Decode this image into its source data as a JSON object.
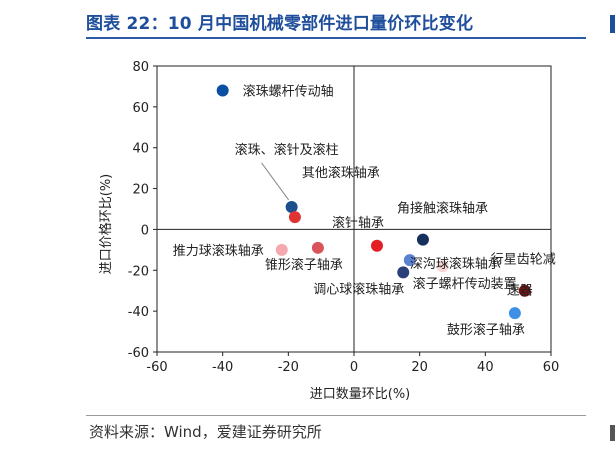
{
  "title": "图表 22：10 月中国机械零部件进口量价环比变化",
  "source": "资料来源：Wind，爱建证券研究所",
  "chart_data": {
    "type": "scatter",
    "xlabel": "进口数量环比(%)",
    "ylabel": "进口价格环比(%)",
    "xlim": [
      -60,
      60
    ],
    "ylim": [
      -60,
      80
    ],
    "xticks": [
      "-60",
      "-40",
      "-20",
      "0",
      "20",
      "40",
      "60"
    ],
    "yticks": [
      "80",
      "60",
      "40",
      "20",
      "0",
      "-20",
      "-40",
      "-60"
    ],
    "grid": false,
    "points": [
      {
        "label": "滚珠螺杆传动轴",
        "x": -40,
        "y": 68,
        "color": "#0b4ea2"
      },
      {
        "label": "滚珠、滚针及滚柱",
        "x": -19,
        "y": 11,
        "color": "#1c4f8c"
      },
      {
        "label": "其他滚珠轴承",
        "x": -18,
        "y": 6,
        "color": "#e03434"
      },
      {
        "label": "推力球滚珠轴承",
        "x": -22,
        "y": -10,
        "color": "#f4a9ae"
      },
      {
        "label": "锥形滚子轴承",
        "x": -11,
        "y": -9,
        "color": "#d9535a"
      },
      {
        "label": "滚针轴承",
        "x": 7,
        "y": -8,
        "color": "#e31e24"
      },
      {
        "label": "角接触滚珠轴承",
        "x": 21,
        "y": -5,
        "color": "#16305e"
      },
      {
        "label": "调心球滚珠轴承",
        "x": 15,
        "y": -21,
        "color": "#2a3f7a"
      },
      {
        "label": "深沟球滚珠轴承",
        "x": 17,
        "y": -15,
        "color": "#5b82cf"
      },
      {
        "label": "滚子螺杆传动装置",
        "x": 27,
        "y": -18,
        "color": "#f7d6d6"
      },
      {
        "label": "行星齿轮减速器",
        "x": 52,
        "y": -30,
        "color": "#7a1111"
      },
      {
        "label": "鼓形滚子轴承",
        "x": 49,
        "y": -41,
        "color": "#3f8fe6"
      }
    ]
  }
}
